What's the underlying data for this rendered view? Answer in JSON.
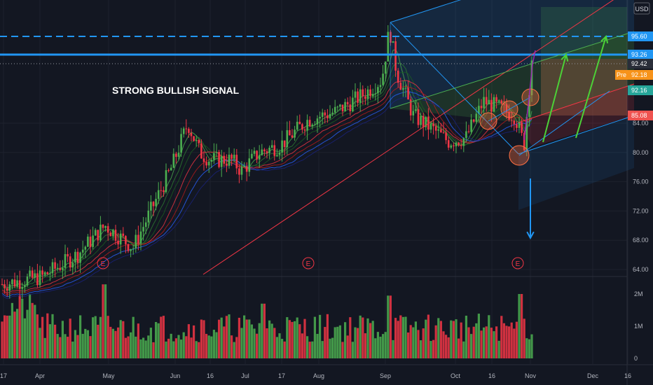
{
  "chart_data": {
    "type": "candlestick",
    "title": "",
    "annotation": "STRONG BULLISH SIGNAL",
    "currency": "USD",
    "x_ticks": [
      "17",
      "Apr",
      "May",
      "Jun",
      "16",
      "Jul",
      "17",
      "Aug",
      "Sep",
      "Oct",
      "16",
      "Nov",
      "Dec",
      "16"
    ],
    "y_ticks": [
      "64.00",
      "68.00",
      "72.00",
      "76.00",
      "80.00",
      "84.00"
    ],
    "price_axis_range": [
      64,
      100
    ],
    "volume_ticks": [
      "2M",
      "1M",
      "0"
    ],
    "volume_axis_range": [
      0,
      2500000
    ],
    "earnings_marker_label": "E",
    "price_labels": [
      {
        "text": "95.60",
        "value": 95.6,
        "color": "#2196f3",
        "style": "dashed line"
      },
      {
        "text": "93.26",
        "value": 93.26,
        "color": "#2196f3",
        "style": "solid line"
      },
      {
        "text": "92.42",
        "value": 92.42,
        "color": "#2a2e39",
        "style": "dotted line"
      },
      {
        "text": "92.18",
        "value": 92.18,
        "color": "#f7931a",
        "tag": "Pre"
      },
      {
        "text": "92.16",
        "value": 92.16,
        "color": "#26a69a"
      },
      {
        "text": "85.08",
        "value": 85.08,
        "color": "#ef5350"
      }
    ],
    "grid": true,
    "colors": {
      "background": "#131722",
      "up": "#4caf50",
      "down": "#f23645",
      "horizontal_levels": "#2196f3",
      "pitchfork_median": "#f23645",
      "arrows_up": "#4cd137",
      "arrow_down": "#2196f3"
    },
    "volume_colors": {
      "up": "#4caf50",
      "down": "#f23645"
    }
  }
}
